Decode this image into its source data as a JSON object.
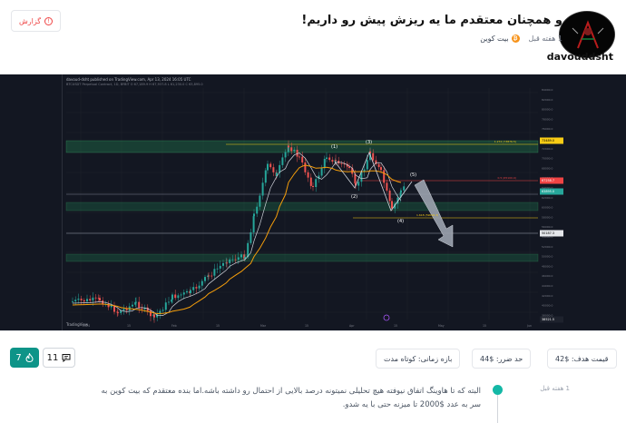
{
  "header": {
    "title": "و همچنان معتقدم ما یه ریزش پیش رو داریم!",
    "time_ago": "1 هفته قبل",
    "coin": "بیت کوین",
    "coin_symbol": "₿",
    "username": "davouddsht",
    "report_label": "گزارش"
  },
  "chart": {
    "header_line": "davoud-dsht published on TradingView.com, Apr 13, 2024 16:05 UTC",
    "header_line2": "BTCUSDT Perpetual Contract, 1D, BYBIT  O 67,189.9  H 67,937.8  L 61,230.0  C 63,895.0",
    "logo": "TradingView",
    "wave_labels": [
      "(1)",
      "(2)",
      "(3)",
      "(4)",
      "(5)"
    ],
    "price_ticks": [
      "84000.0",
      "82000.0",
      "80000.0",
      "78000.0",
      "76000.0",
      "74000.0",
      "72000.0",
      "70000.0",
      "68000.0",
      "66000.0",
      "64000.0",
      "62000.0",
      "60000.0",
      "58000.0",
      "56000.0",
      "54000.0",
      "52000.0",
      "50000.0",
      "48000.0",
      "46000.0",
      "44000.0",
      "42000.0",
      "40000.0",
      "38000.0"
    ],
    "time_ticks": [
      "2024",
      "15",
      "Feb",
      "15",
      "Mar",
      "15",
      "Apr",
      "15",
      "May",
      "15",
      "Jun"
    ],
    "fib_labels": [
      "1.272 (73876.5)",
      "1.618 (59006.3)",
      "0.5 (65100.0)"
    ],
    "price_badges": [
      "73489.0",
      "67258.7",
      "63895.0",
      "50187.3",
      "38521.5"
    ]
  },
  "stats": {
    "likes": "7",
    "comments": "11",
    "target_price": "قیمت هدف: $42",
    "stop_loss": "حد ضرر: $44",
    "timeframe": "بازه زمانی: کوتاه مدت"
  },
  "description": {
    "time_ago": "1 هفته قبل",
    "text": "البته که تا هاوینگ اتفاق نیوفته هیچ تحلیلی نمیتونه درصد بالایی از احتمال رو داشته باشه.اما بنده معتقدم که بیت کوین به سر به عدد $2000 تا میزنه حتی با یه شدو."
  },
  "colors": {
    "accent": "#14b8a6",
    "like_bg": "#0d9488",
    "report": "#ef4444",
    "chart_bg": "#131722",
    "candle_up": "#26a69a",
    "candle_down": "#ef5350",
    "ma_orange": "#f59e0b",
    "ma_white": "#d1d4dc"
  }
}
